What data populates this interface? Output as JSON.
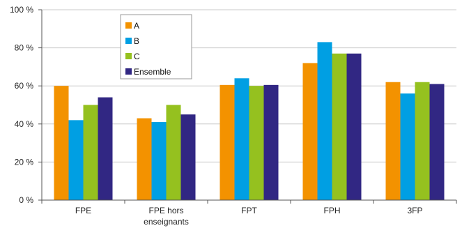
{
  "chart_data": {
    "type": "bar",
    "categories": [
      [
        "FPE"
      ],
      [
        "FPE hors",
        "enseignants"
      ],
      [
        "FPT"
      ],
      [
        "FPH"
      ],
      [
        "3FP"
      ]
    ],
    "series": [
      {
        "name": "A",
        "color": "#f39200",
        "values": [
          60,
          43,
          60.5,
          72,
          62
        ]
      },
      {
        "name": "B",
        "color": "#009fe3",
        "values": [
          42,
          41,
          64,
          83,
          56
        ]
      },
      {
        "name": "C",
        "color": "#95c11f",
        "values": [
          50,
          50,
          60,
          77,
          62
        ]
      },
      {
        "name": "Ensemble",
        "color": "#312783",
        "values": [
          54,
          45,
          60.5,
          77,
          61
        ]
      }
    ],
    "ylim": [
      0,
      100
    ],
    "yticks": [
      0,
      20,
      40,
      60,
      80,
      100
    ],
    "ytick_labels": [
      "0 %",
      "20 %",
      "40 %",
      "60 %",
      "80 %",
      "100 %"
    ],
    "grid": true,
    "legend_position": "top-left"
  }
}
